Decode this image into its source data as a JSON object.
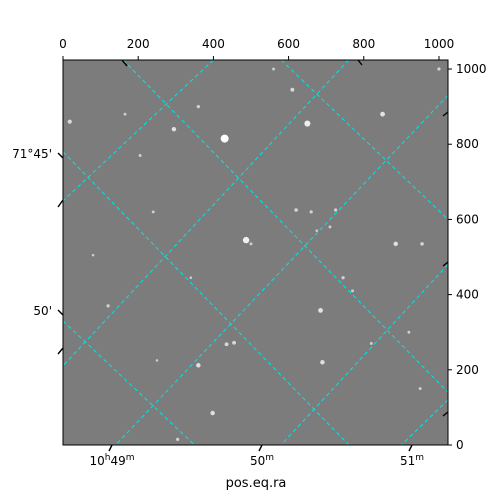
{
  "chart_data": {
    "type": "image",
    "xlabel": "pos.eq.ra",
    "ylabel": "",
    "pixel_axis_top": {
      "lim": [
        0,
        1024
      ],
      "ticks": [
        0,
        200,
        400,
        600,
        800,
        1000
      ],
      "tick_labels": [
        "0",
        "200",
        "400",
        "600",
        "800",
        "1000"
      ]
    },
    "pixel_axis_right": {
      "lim": [
        0,
        1024
      ],
      "ticks": [
        0,
        200,
        400,
        600,
        800,
        1000
      ],
      "tick_labels": [
        "0",
        "200",
        "400",
        "600",
        "800",
        "1000"
      ]
    },
    "ra_ticks": [
      {
        "hour": "10",
        "min": "49",
        "label_h": "h",
        "label_m": "m"
      },
      {
        "hour": "",
        "min": "50",
        "label_h": "",
        "label_m": "m"
      },
      {
        "hour": "",
        "min": "51",
        "label_h": "",
        "label_m": "m"
      }
    ],
    "dec_ticks": [
      {
        "label": "71°45'"
      },
      {
        "label": "50'"
      }
    ],
    "grid": true,
    "grid_color": "#00e5e5",
    "image_background": "#7c7c7c",
    "stars": [
      {
        "x": 430,
        "y": 815,
        "mag": 1.0
      },
      {
        "x": 650,
        "y": 855,
        "mag": 0.7
      },
      {
        "x": 487,
        "y": 545,
        "mag": 0.75
      },
      {
        "x": 850,
        "y": 880,
        "mag": 0.5
      },
      {
        "x": 295,
        "y": 840,
        "mag": 0.45
      },
      {
        "x": 18,
        "y": 860,
        "mag": 0.4
      },
      {
        "x": 885,
        "y": 535,
        "mag": 0.45
      },
      {
        "x": 685,
        "y": 358,
        "mag": 0.5
      },
      {
        "x": 690,
        "y": 220,
        "mag": 0.45
      },
      {
        "x": 360,
        "y": 212,
        "mag": 0.45
      },
      {
        "x": 398,
        "y": 85,
        "mag": 0.45
      },
      {
        "x": 435,
        "y": 268,
        "mag": 0.35
      },
      {
        "x": 455,
        "y": 272,
        "mag": 0.35
      },
      {
        "x": 610,
        "y": 945,
        "mag": 0.35
      },
      {
        "x": 360,
        "y": 900,
        "mag": 0.25
      },
      {
        "x": 620,
        "y": 625,
        "mag": 0.3
      },
      {
        "x": 660,
        "y": 620,
        "mag": 0.25
      },
      {
        "x": 725,
        "y": 625,
        "mag": 0.25
      },
      {
        "x": 955,
        "y": 535,
        "mag": 0.3
      },
      {
        "x": 1000,
        "y": 1000,
        "mag": 0.25
      },
      {
        "x": 745,
        "y": 445,
        "mag": 0.25
      },
      {
        "x": 770,
        "y": 410,
        "mag": 0.2
      },
      {
        "x": 120,
        "y": 370,
        "mag": 0.25
      },
      {
        "x": 305,
        "y": 15,
        "mag": 0.25
      },
      {
        "x": 500,
        "y": 535,
        "mag": 0.2
      },
      {
        "x": 240,
        "y": 620,
        "mag": 0.2
      },
      {
        "x": 205,
        "y": 770,
        "mag": 0.2
      },
      {
        "x": 820,
        "y": 270,
        "mag": 0.2
      },
      {
        "x": 920,
        "y": 300,
        "mag": 0.2
      },
      {
        "x": 560,
        "y": 1000,
        "mag": 0.2
      },
      {
        "x": 165,
        "y": 880,
        "mag": 0.2
      },
      {
        "x": 80,
        "y": 505,
        "mag": 0.15
      },
      {
        "x": 250,
        "y": 225,
        "mag": 0.15
      },
      {
        "x": 340,
        "y": 445,
        "mag": 0.15
      },
      {
        "x": 710,
        "y": 580,
        "mag": 0.2
      },
      {
        "x": 675,
        "y": 570,
        "mag": 0.15
      },
      {
        "x": 950,
        "y": 150,
        "mag": 0.2
      }
    ]
  }
}
